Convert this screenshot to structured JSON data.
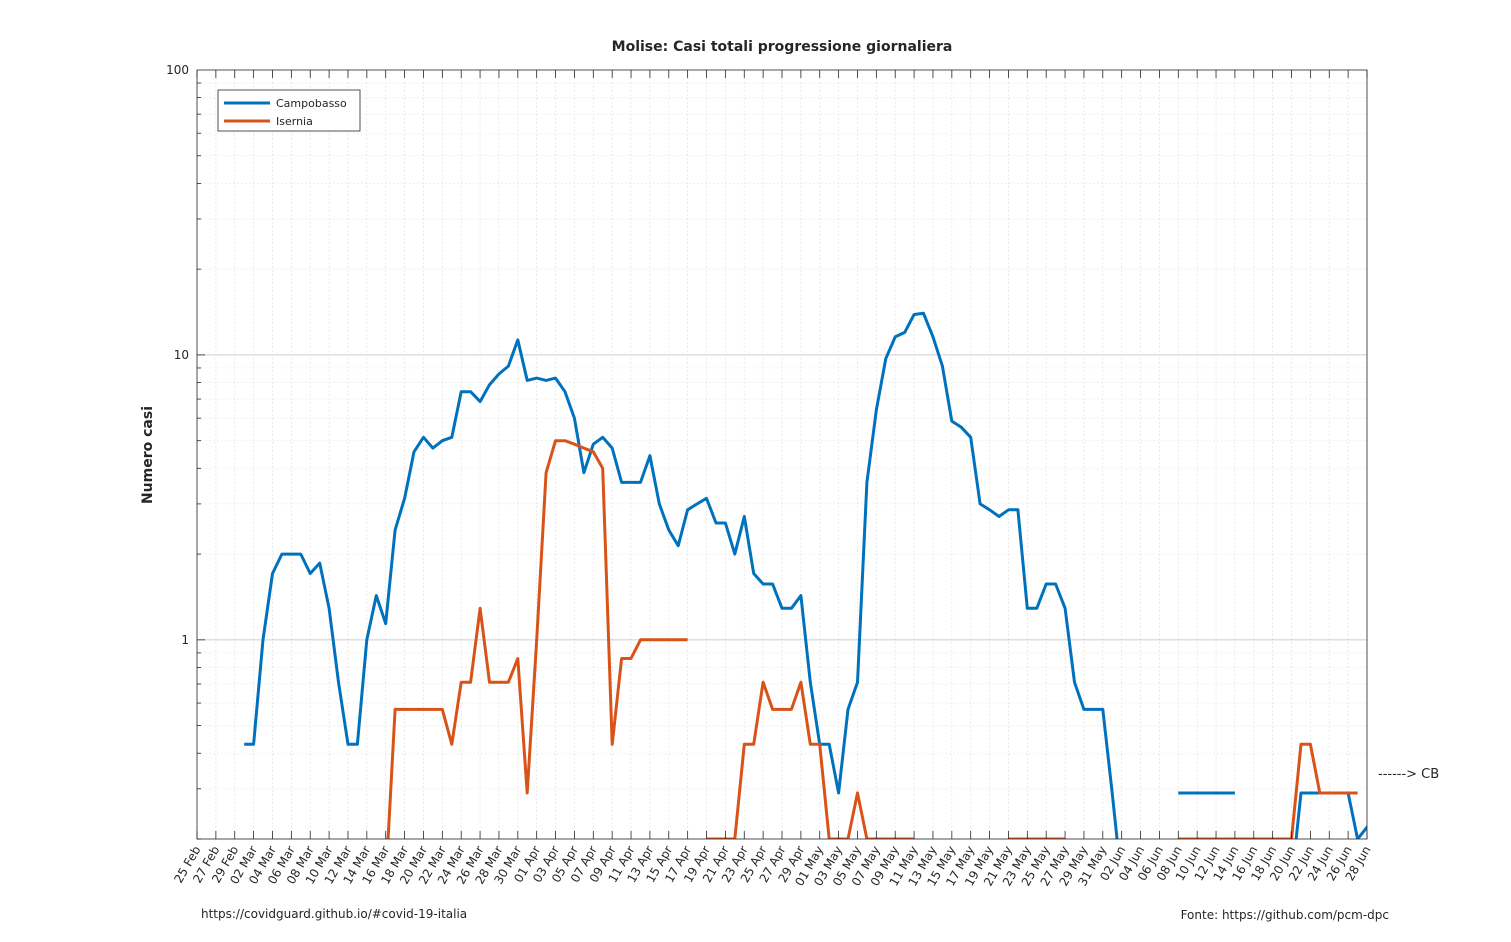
{
  "chart_data": {
    "type": "line",
    "title": "Molise: Casi totali progressione giornaliera",
    "xlabel": "",
    "ylabel": "Numero casi",
    "yscale": "log",
    "ylim": [
      0.2,
      100
    ],
    "xlim": [
      "2020-02-25",
      "2020-06-28"
    ],
    "grid": true,
    "legend_position": "top-left",
    "x_ticks": [
      "25 Feb",
      "27 Feb",
      "29 Feb",
      "02 Mar",
      "04 Mar",
      "06 Mar",
      "08 Mar",
      "10 Mar",
      "12 Mar",
      "14 Mar",
      "16 Mar",
      "18 Mar",
      "20 Mar",
      "22 Mar",
      "24 Mar",
      "26 Mar",
      "28 Mar",
      "30 Mar",
      "01 Apr",
      "03 Apr",
      "05 Apr",
      "07 Apr",
      "09 Apr",
      "11 Apr",
      "13 Apr",
      "15 Apr",
      "17 Apr",
      "19 Apr",
      "21 Apr",
      "23 Apr",
      "25 Apr",
      "27 Apr",
      "29 Apr",
      "01 May",
      "03 May",
      "05 May",
      "07 May",
      "09 May",
      "11 May",
      "13 May",
      "15 May",
      "17 May",
      "19 May",
      "21 May",
      "23 May",
      "25 May",
      "27 May",
      "29 May",
      "31 May",
      "02 Jun",
      "04 Jun",
      "06 Jun",
      "08 Jun",
      "10 Jun",
      "12 Jun",
      "14 Jun",
      "16 Jun",
      "18 Jun",
      "20 Jun",
      "22 Jun",
      "24 Jun",
      "26 Jun",
      "28 Jun"
    ],
    "y_ticks": [
      {
        "value": 1,
        "label": "1"
      },
      {
        "value": 10,
        "label": "10"
      },
      {
        "value": 100,
        "label": "100"
      }
    ],
    "series": [
      {
        "name": "Campobasso",
        "color": "#0072bd",
        "segments": [
          [
            [
              "2020-03-01",
              0.43
            ],
            [
              "2020-03-02",
              0.43
            ],
            [
              "2020-03-03",
              1.0
            ],
            [
              "2020-03-04",
              1.71
            ],
            [
              "2020-03-05",
              2.0
            ],
            [
              "2020-03-06",
              2.0
            ],
            [
              "2020-03-07",
              2.0
            ],
            [
              "2020-03-08",
              1.71
            ],
            [
              "2020-03-09",
              1.86
            ],
            [
              "2020-03-10",
              1.29
            ],
            [
              "2020-03-11",
              0.71
            ],
            [
              "2020-03-12",
              0.43
            ],
            [
              "2020-03-13",
              0.43
            ],
            [
              "2020-03-14",
              1.0
            ],
            [
              "2020-03-15",
              1.43
            ],
            [
              "2020-03-16",
              1.14
            ],
            [
              "2020-03-17",
              2.43
            ],
            [
              "2020-03-18",
              3.14
            ],
            [
              "2020-03-19",
              4.57
            ],
            [
              "2020-03-20",
              5.14
            ],
            [
              "2020-03-21",
              4.71
            ],
            [
              "2020-03-22",
              5.0
            ],
            [
              "2020-03-23",
              5.14
            ],
            [
              "2020-03-24",
              7.43
            ],
            [
              "2020-03-25",
              7.43
            ],
            [
              "2020-03-26",
              6.86
            ],
            [
              "2020-03-27",
              7.86
            ],
            [
              "2020-03-28",
              8.57
            ],
            [
              "2020-03-29",
              9.14
            ],
            [
              "2020-03-30",
              11.29
            ],
            [
              "2020-03-31",
              8.14
            ],
            [
              "2020-04-01",
              8.29
            ],
            [
              "2020-04-02",
              8.14
            ],
            [
              "2020-04-03",
              8.29
            ],
            [
              "2020-04-04",
              7.43
            ],
            [
              "2020-04-05",
              6.0
            ],
            [
              "2020-04-06",
              3.86
            ],
            [
              "2020-04-07",
              4.86
            ],
            [
              "2020-04-08",
              5.14
            ],
            [
              "2020-04-09",
              4.71
            ],
            [
              "2020-04-10",
              3.57
            ],
            [
              "2020-04-11",
              3.57
            ],
            [
              "2020-04-12",
              3.57
            ],
            [
              "2020-04-13",
              4.43
            ],
            [
              "2020-04-14",
              3.0
            ],
            [
              "2020-04-15",
              2.43
            ],
            [
              "2020-04-16",
              2.14
            ],
            [
              "2020-04-17",
              2.86
            ],
            [
              "2020-04-18",
              3.0
            ],
            [
              "2020-04-19",
              3.14
            ],
            [
              "2020-04-20",
              2.57
            ],
            [
              "2020-04-21",
              2.57
            ],
            [
              "2020-04-22",
              2.0
            ],
            [
              "2020-04-23",
              2.71
            ],
            [
              "2020-04-24",
              1.71
            ],
            [
              "2020-04-25",
              1.57
            ],
            [
              "2020-04-26",
              1.57
            ],
            [
              "2020-04-27",
              1.29
            ],
            [
              "2020-04-28",
              1.29
            ],
            [
              "2020-04-29",
              1.43
            ],
            [
              "2020-04-30",
              0.71
            ],
            [
              "2020-05-01",
              0.43
            ],
            [
              "2020-05-02",
              0.43
            ],
            [
              "2020-05-03",
              0.29
            ],
            [
              "2020-05-04",
              0.57
            ],
            [
              "2020-05-05",
              0.71
            ],
            [
              "2020-05-06",
              3.57
            ],
            [
              "2020-05-07",
              6.43
            ],
            [
              "2020-05-08",
              9.71
            ],
            [
              "2020-05-09",
              11.57
            ],
            [
              "2020-05-10",
              12.0
            ],
            [
              "2020-05-11",
              13.86
            ],
            [
              "2020-05-12",
              14.0
            ],
            [
              "2020-05-13",
              11.57
            ],
            [
              "2020-05-14",
              9.14
            ],
            [
              "2020-05-15",
              5.86
            ],
            [
              "2020-05-16",
              5.57
            ],
            [
              "2020-05-17",
              5.14
            ],
            [
              "2020-05-18",
              3.0
            ],
            [
              "2020-05-19",
              2.86
            ],
            [
              "2020-05-20",
              2.71
            ],
            [
              "2020-05-21",
              2.86
            ],
            [
              "2020-05-22",
              2.86
            ],
            [
              "2020-05-23",
              1.29
            ],
            [
              "2020-05-24",
              1.29
            ],
            [
              "2020-05-25",
              1.57
            ],
            [
              "2020-05-26",
              1.57
            ],
            [
              "2020-05-27",
              1.29
            ],
            [
              "2020-05-28",
              0.71
            ],
            [
              "2020-05-29",
              0.57
            ],
            [
              "2020-05-30",
              0.57
            ],
            [
              "2020-05-31",
              0.57
            ],
            [
              "2020-06-01",
              0.29
            ],
            [
              "2020-06-02",
              0.14
            ]
          ],
          [
            [
              "2020-06-08",
              0.29
            ],
            [
              "2020-06-09",
              0.29
            ],
            [
              "2020-06-10",
              0.29
            ],
            [
              "2020-06-11",
              0.29
            ],
            [
              "2020-06-12",
              0.29
            ],
            [
              "2020-06-13",
              0.29
            ],
            [
              "2020-06-14",
              0.29
            ]
          ],
          [
            [
              "2020-06-20",
              0.14
            ],
            [
              "2020-06-21",
              0.29
            ],
            [
              "2020-06-22",
              0.29
            ],
            [
              "2020-06-23",
              0.29
            ],
            [
              "2020-06-24",
              0.29
            ],
            [
              "2020-06-25",
              0.29
            ],
            [
              "2020-06-26",
              0.29
            ],
            [
              "2020-06-27",
              0.2
            ],
            [
              "2020-06-28",
              0.22
            ],
            [
              "2020-06-29",
              0.24
            ],
            [
              "2020-06-30",
              0.27
            ]
          ]
        ]
      },
      {
        "name": "Isernia",
        "color": "#d95319",
        "segments": [
          [
            [
              "2020-03-16",
              0.14
            ],
            [
              "2020-03-17",
              0.57
            ],
            [
              "2020-03-18",
              0.57
            ],
            [
              "2020-03-19",
              0.57
            ],
            [
              "2020-03-20",
              0.57
            ],
            [
              "2020-03-21",
              0.57
            ],
            [
              "2020-03-22",
              0.57
            ],
            [
              "2020-03-23",
              0.43
            ],
            [
              "2020-03-24",
              0.71
            ],
            [
              "2020-03-25",
              0.71
            ],
            [
              "2020-03-26",
              1.29
            ],
            [
              "2020-03-27",
              0.71
            ],
            [
              "2020-03-28",
              0.71
            ],
            [
              "2020-03-29",
              0.71
            ],
            [
              "2020-03-30",
              0.86
            ],
            [
              "2020-03-31",
              0.29
            ],
            [
              "2020-04-01",
              1.0
            ],
            [
              "2020-04-02",
              3.86
            ],
            [
              "2020-04-03",
              5.0
            ],
            [
              "2020-04-04",
              5.0
            ],
            [
              "2020-04-05",
              4.86
            ],
            [
              "2020-04-06",
              4.71
            ],
            [
              "2020-04-07",
              4.57
            ],
            [
              "2020-04-08",
              4.0
            ],
            [
              "2020-04-09",
              0.43
            ],
            [
              "2020-04-10",
              0.86
            ],
            [
              "2020-04-11",
              0.86
            ],
            [
              "2020-04-12",
              1.0
            ],
            [
              "2020-04-13",
              1.0
            ],
            [
              "2020-04-14",
              1.0
            ],
            [
              "2020-04-15",
              1.0
            ],
            [
              "2020-04-16",
              1.0
            ],
            [
              "2020-04-17",
              1.0
            ]
          ],
          [
            [
              "2020-04-19",
              0.2
            ],
            [
              "2020-04-20",
              0.2
            ],
            [
              "2020-04-21",
              0.2
            ],
            [
              "2020-04-22",
              0.2
            ],
            [
              "2020-04-23",
              0.43
            ],
            [
              "2020-04-24",
              0.43
            ],
            [
              "2020-04-25",
              0.71
            ],
            [
              "2020-04-26",
              0.57
            ],
            [
              "2020-04-27",
              0.57
            ],
            [
              "2020-04-28",
              0.57
            ],
            [
              "2020-04-29",
              0.71
            ],
            [
              "2020-04-30",
              0.43
            ],
            [
              "2020-05-01",
              0.43
            ],
            [
              "2020-05-02",
              0.2
            ],
            [
              "2020-05-03",
              0.2
            ],
            [
              "2020-05-04",
              0.2
            ],
            [
              "2020-05-05",
              0.29
            ],
            [
              "2020-05-06",
              0.2
            ],
            [
              "2020-05-07",
              0.2
            ],
            [
              "2020-05-08",
              0.2
            ],
            [
              "2020-05-09",
              0.2
            ],
            [
              "2020-05-10",
              0.2
            ],
            [
              "2020-05-11",
              0.2
            ]
          ],
          [
            [
              "2020-05-21",
              0.2
            ],
            [
              "2020-05-22",
              0.2
            ],
            [
              "2020-05-23",
              0.2
            ],
            [
              "2020-05-24",
              0.2
            ],
            [
              "2020-05-25",
              0.2
            ],
            [
              "2020-05-26",
              0.2
            ],
            [
              "2020-05-27",
              0.2
            ]
          ],
          [
            [
              "2020-06-08",
              0.2
            ],
            [
              "2020-06-09",
              0.2
            ],
            [
              "2020-06-10",
              0.2
            ],
            [
              "2020-06-11",
              0.2
            ],
            [
              "2020-06-12",
              0.2
            ],
            [
              "2020-06-13",
              0.2
            ],
            [
              "2020-06-14",
              0.2
            ],
            [
              "2020-06-15",
              0.2
            ],
            [
              "2020-06-16",
              0.2
            ],
            [
              "2020-06-17",
              0.2
            ],
            [
              "2020-06-18",
              0.2
            ],
            [
              "2020-06-19",
              0.2
            ],
            [
              "2020-06-20",
              0.2
            ],
            [
              "2020-06-21",
              0.43
            ],
            [
              "2020-06-22",
              0.43
            ],
            [
              "2020-06-23",
              0.29
            ],
            [
              "2020-06-24",
              0.29
            ],
            [
              "2020-06-25",
              0.29
            ],
            [
              "2020-06-26",
              0.29
            ],
            [
              "2020-06-27",
              0.29
            ]
          ]
        ]
      }
    ],
    "annotations": [
      {
        "text": "------> CB"
      }
    ]
  },
  "footer": {
    "left": "https://covidguard.github.io/#covid-19-italia",
    "right": "Fonte: https://github.com/pcm-dpc"
  }
}
